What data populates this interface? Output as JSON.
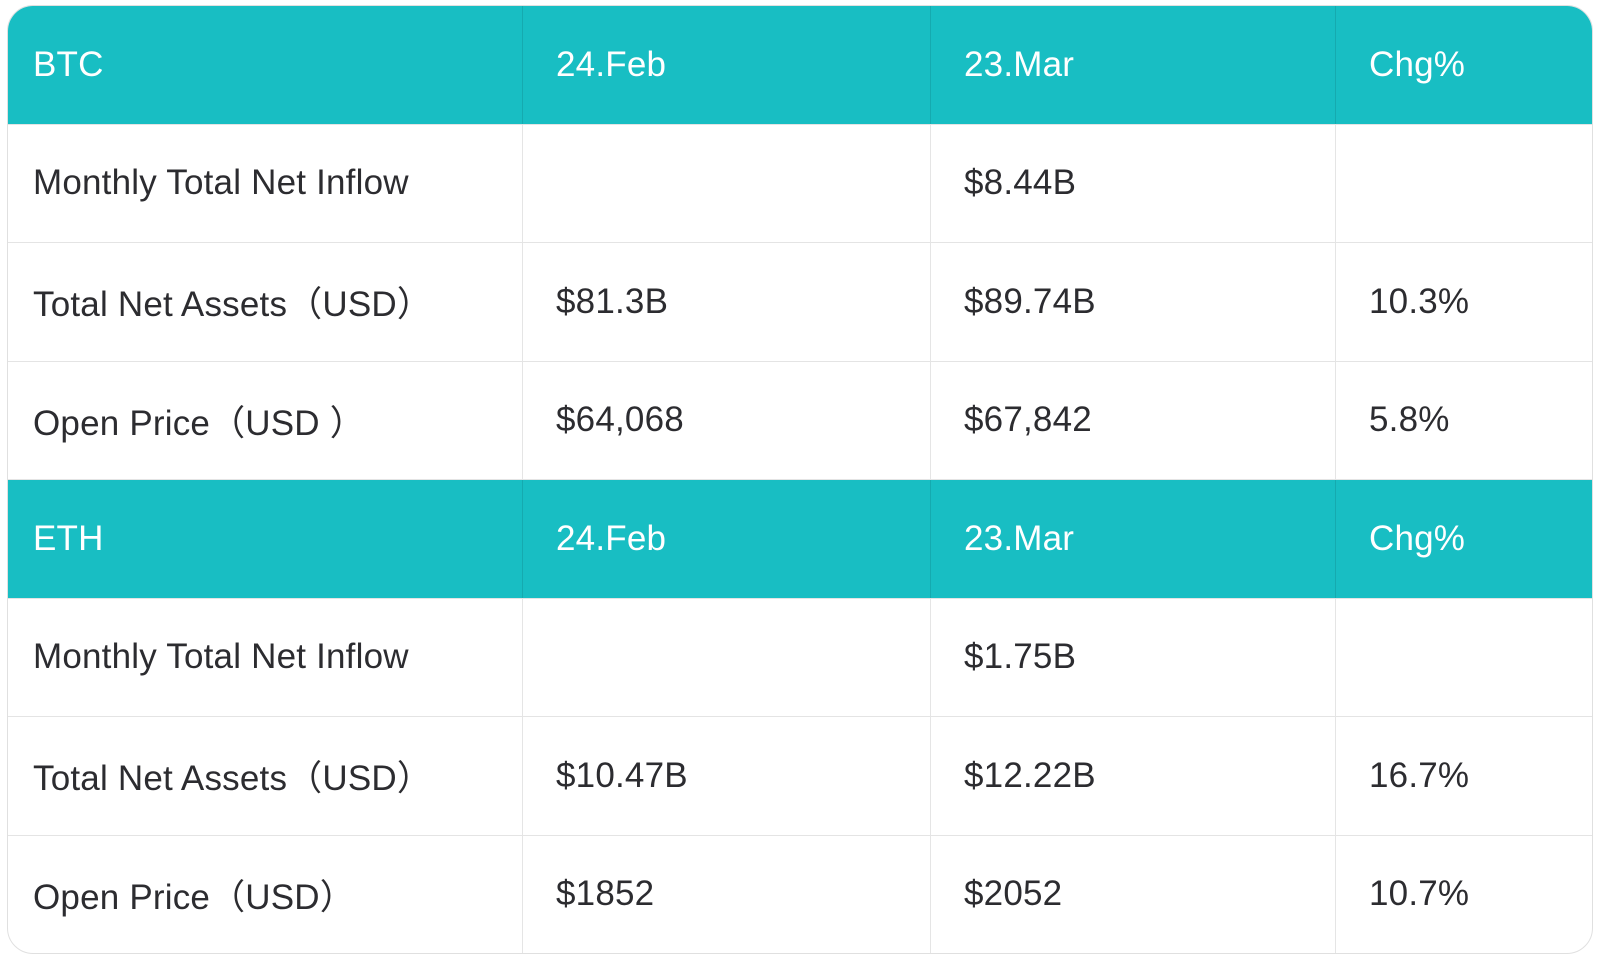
{
  "theme": {
    "header_bg": "#18bec3",
    "header_text": "#ffffff",
    "body_text": "#2c2c30",
    "page_bg": "#ffffff",
    "card_border": "#e0e0e0",
    "row_divider": "#e4e4e4"
  },
  "table": {
    "sections": [
      {
        "header": {
          "asset": "BTC",
          "col_feb": "24.Feb",
          "col_mar": "23.Mar",
          "col_chg": "Chg%"
        },
        "rows": [
          {
            "label": "Monthly Total Net Inflow",
            "feb": "",
            "mar": "$8.44B",
            "chg": ""
          },
          {
            "label": "Total Net Assets（USD）",
            "feb": "$81.3B",
            "mar": "$89.74B",
            "chg": "10.3%"
          },
          {
            "label": "Open Price（USD ）",
            "feb": "$64,068",
            "mar": "$67,842",
            "chg": "5.8%"
          }
        ]
      },
      {
        "header": {
          "asset": "ETH",
          "col_feb": "24.Feb",
          "col_mar": "23.Mar",
          "col_chg": "Chg%"
        },
        "rows": [
          {
            "label": "Monthly Total Net Inflow",
            "feb": "",
            "mar": "$1.75B",
            "chg": ""
          },
          {
            "label": "Total Net Assets（USD）",
            "feb": "$10.47B",
            "mar": "$12.22B",
            "chg": "16.7%"
          },
          {
            "label": "Open Price（USD）",
            "feb": "$1852",
            "mar": "$2052",
            "chg": "10.7%"
          }
        ]
      }
    ]
  },
  "chart_data": {
    "type": "table",
    "tables": [
      {
        "title": "BTC",
        "columns": [
          "BTC",
          "24.Feb",
          "23.Mar",
          "Chg%"
        ],
        "rows": [
          [
            "Monthly Total Net Inflow",
            "",
            "$8.44B",
            ""
          ],
          [
            "Total Net Assets（USD）",
            "$81.3B",
            "$89.74B",
            "10.3%"
          ],
          [
            "Open Price（USD ）",
            "$64,068",
            "$67,842",
            "5.8%"
          ]
        ]
      },
      {
        "title": "ETH",
        "columns": [
          "ETH",
          "24.Feb",
          "23.Mar",
          "Chg%"
        ],
        "rows": [
          [
            "Monthly Total Net Inflow",
            "",
            "$1.75B",
            ""
          ],
          [
            "Total Net Assets（USD）",
            "$10.47B",
            "$12.22B",
            "16.7%"
          ],
          [
            "Open Price（USD）",
            "$1852",
            "$2052",
            "10.7%"
          ]
        ]
      }
    ]
  }
}
